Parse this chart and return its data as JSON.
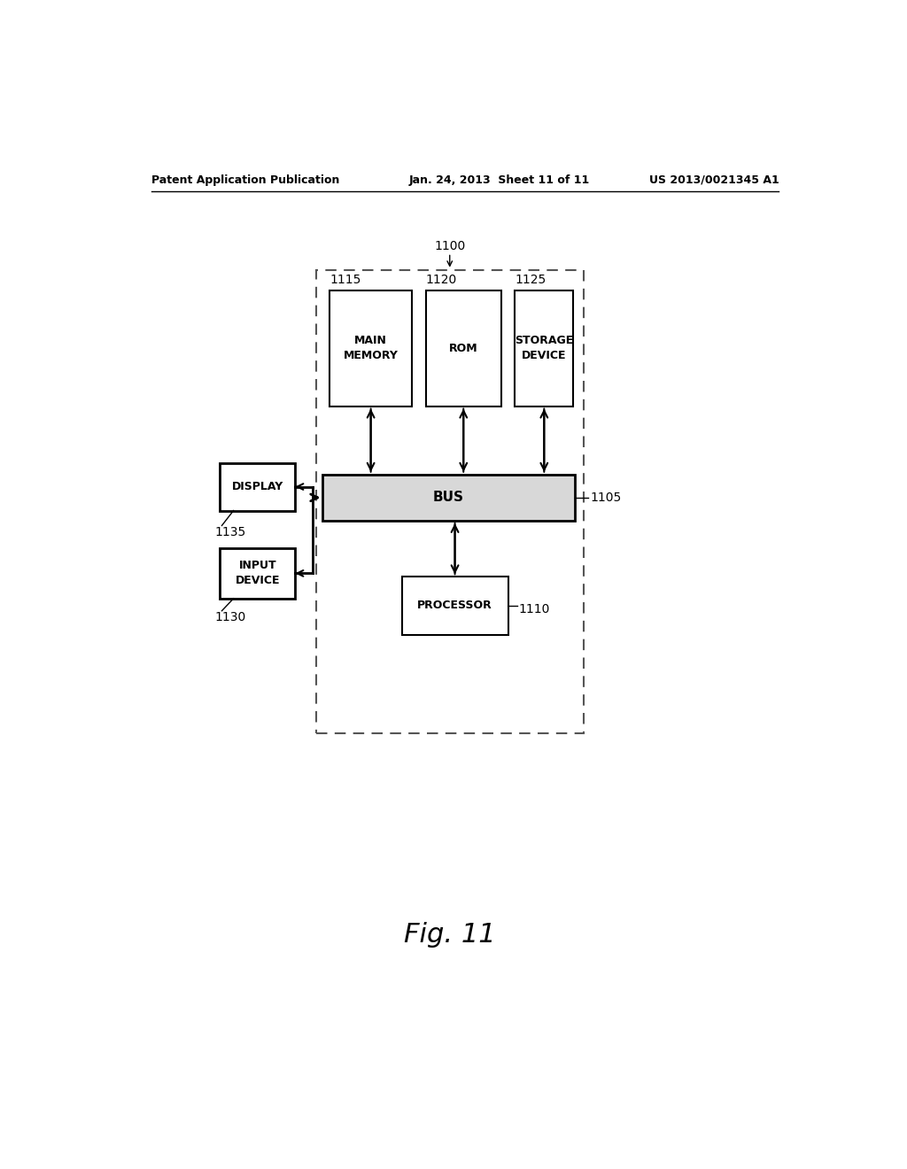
{
  "background_color": "#ffffff",
  "header_left": "Patent Application Publication",
  "header_center": "Jan. 24, 2013  Sheet 11 of 11",
  "header_right": "US 2013/0021345 A1",
  "fig_label": "Fig. 11",
  "outer_box_label": "1100",
  "bus_label": "1105",
  "processor_label": "1110",
  "main_memory_label": "1115",
  "rom_label": "1120",
  "storage_label": "1125",
  "input_device_label": "1130",
  "display_label": "1135"
}
